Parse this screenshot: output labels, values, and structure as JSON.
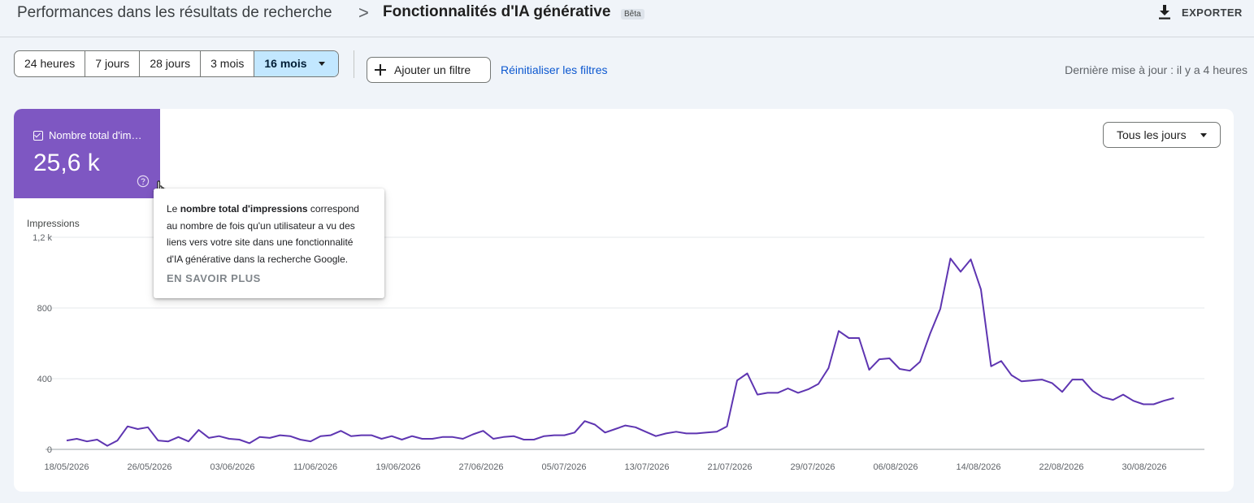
{
  "header": {
    "breadcrumb_parent": "Performances dans les résultats de recherche",
    "breadcrumb_separator": ">",
    "breadcrumb_current": "Fonctionnalités d'IA générative",
    "beta_badge": "Bêta",
    "export_label": "EXPORTER",
    "export_icon": "download-icon"
  },
  "filters": {
    "date_ranges": [
      "24 heures",
      "7 jours",
      "28 jours",
      "3 mois",
      "16 mois"
    ],
    "selected_date_range": "16 mois",
    "add_filter_label": "Ajouter un filtre",
    "add_filter_icon": "plus-icon",
    "reset_filters_label": "Réinitialiser les filtres",
    "last_update": "Dernière mise à jour : il y a 4 heures"
  },
  "metric": {
    "label": "Nombre total d'im…",
    "value": "25,6 k",
    "checked": true,
    "color": "#7e57c2",
    "help_icon": "help-icon"
  },
  "granularity": {
    "selected": "Tous les jours"
  },
  "tooltip": {
    "text_before": "Le ",
    "text_bold": "nombre total d'impressions",
    "text_after": " correspond au nombre de fois qu'un utilisateur a vu des liens vers votre site dans une fonctionnalité d'IA générative dans la recherche Google.",
    "link": "EN SAVOIR PLUS"
  },
  "colors": {
    "accent": "#7e57c2",
    "line": "#5e35b1",
    "link": "#0b57d0",
    "selected_chip": "#c2e7ff"
  },
  "chart_data": {
    "type": "line",
    "ylabel": "Impressions",
    "ylim": [
      0,
      1200
    ],
    "y_ticks": [
      "0",
      "400",
      "800",
      "1,2 k"
    ],
    "y_tick_values": [
      0,
      400,
      800,
      1200
    ],
    "x_ticks": [
      "18/05/2026",
      "26/05/2026",
      "03/06/2026",
      "11/06/2026",
      "19/06/2026",
      "27/06/2026",
      "05/07/2026",
      "13/07/2026",
      "21/07/2026",
      "29/07/2026",
      "06/08/2026",
      "14/08/2026",
      "22/08/2026",
      "30/08/2026"
    ],
    "x_start": "18/05/2026",
    "x_end": "06/09/2026",
    "grid": true,
    "series": [
      {
        "values": [
          50,
          60,
          45,
          55,
          20,
          50,
          130,
          115,
          125,
          50,
          45,
          70,
          45,
          110,
          65,
          75,
          60,
          55,
          35,
          70,
          65,
          80,
          75,
          55,
          45,
          75,
          80,
          105,
          75,
          80,
          80,
          60,
          75,
          55,
          75,
          60,
          60,
          70,
          70,
          60,
          85,
          105,
          60,
          70,
          75,
          55,
          55,
          75,
          80,
          80,
          95,
          160,
          140,
          95,
          115,
          135,
          125,
          100,
          75,
          90,
          100,
          90,
          90,
          95,
          100,
          130,
          390,
          430,
          310,
          320,
          320,
          345,
          320,
          340,
          370,
          460,
          670,
          630,
          630,
          450,
          510,
          515,
          455,
          445,
          495,
          655,
          795,
          1080,
          1005,
          1075,
          905,
          470,
          500,
          420,
          385,
          390,
          395,
          375,
          325,
          395,
          395,
          330,
          295,
          280,
          310,
          275,
          255,
          255,
          275,
          290
        ]
      }
    ]
  }
}
